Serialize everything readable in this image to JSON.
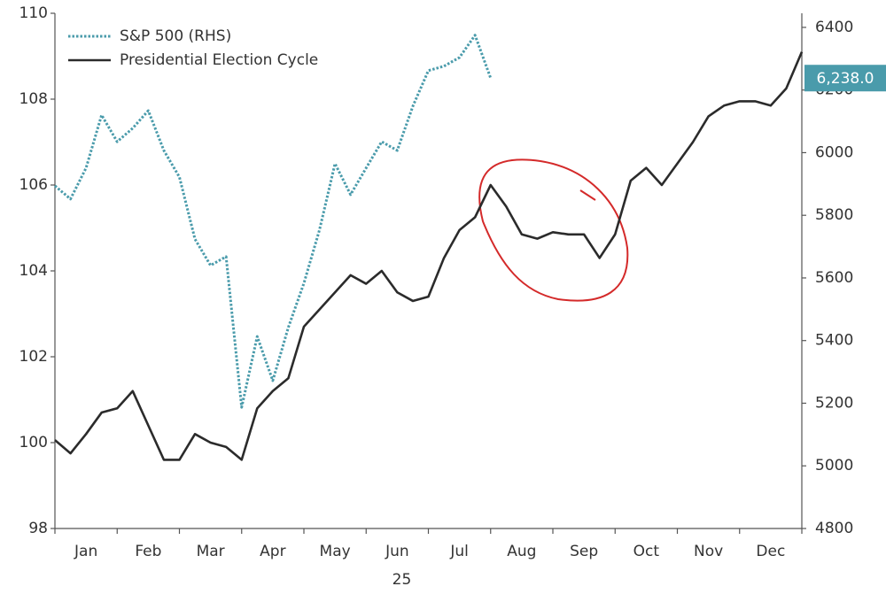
{
  "chart_data": {
    "type": "line",
    "xlabel": "25",
    "categories": [
      "Jan",
      "Feb",
      "Mar",
      "Apr",
      "May",
      "Jun",
      "Jul",
      "Aug",
      "Sep",
      "Oct",
      "Nov",
      "Dec"
    ],
    "xlim": [
      0,
      12
    ],
    "xticks": [
      0,
      1,
      2,
      3,
      4,
      5,
      6,
      7,
      8,
      9,
      10,
      11,
      12
    ],
    "ylim": [
      98,
      110
    ],
    "yticks": [
      98,
      100,
      102,
      104,
      106,
      108,
      110
    ],
    "y2lim": [
      4800,
      6445
    ],
    "y2ticks": [
      4800,
      5000,
      5200,
      5400,
      5600,
      5800,
      6000,
      6200,
      6400
    ],
    "legend": "upper left",
    "x": [
      0,
      0.25,
      0.5,
      0.75,
      1,
      1.25,
      1.5,
      1.75,
      2,
      2.25,
      2.5,
      2.75,
      3,
      3.25,
      3.5,
      3.75,
      4,
      4.25,
      4.5,
      4.75,
      5,
      5.25,
      5.5,
      5.75,
      6,
      6.25,
      6.5,
      6.75,
      7,
      7.25,
      7.5,
      7.75,
      8,
      8.25,
      8.5,
      8.75,
      9,
      9.25,
      9.5,
      9.75,
      10,
      10.25,
      10.5,
      10.75,
      11,
      11.25,
      11.5,
      11.75,
      12
    ],
    "series": [
      {
        "name": "S&P 500 (RHS)",
        "color": "#4a9bab",
        "style": "dotted",
        "axis": "y2",
        "values": [
          5894,
          5852,
          5951,
          6120,
          6035,
          6078,
          6134,
          6007,
          5922,
          5724,
          5640,
          5668,
          5187,
          5413,
          5272,
          5442,
          5583,
          5753,
          5965,
          5866,
          5951,
          6035,
          6007,
          6148,
          6262,
          6276,
          6304,
          6375,
          6238,
          null,
          null,
          null,
          null,
          null,
          null,
          null,
          null,
          null,
          null,
          null,
          null,
          null,
          null,
          null,
          null,
          null,
          null,
          null,
          null
        ]
      },
      {
        "name": "Presidential Election Cycle",
        "color": "#2b2b2b",
        "style": "solid",
        "values": [
          100.06,
          99.75,
          100.2,
          100.7,
          100.8,
          101.2,
          100.4,
          99.6,
          99.6,
          100.2,
          100.0,
          99.9,
          99.6,
          100.8,
          101.2,
          101.5,
          102.7,
          103.1,
          103.5,
          103.9,
          103.7,
          104.0,
          103.5,
          103.3,
          103.4,
          104.3,
          104.95,
          105.25,
          106.0,
          105.5,
          104.85,
          104.75,
          104.9,
          104.85,
          104.85,
          104.3,
          104.85,
          106.1,
          106.4,
          106.0,
          106.5,
          107.0,
          107.6,
          107.85,
          107.95,
          107.95,
          107.85,
          108.25,
          109.1
        ]
      }
    ],
    "last_value": {
      "value": 6238,
      "label": "6,238.0"
    }
  }
}
